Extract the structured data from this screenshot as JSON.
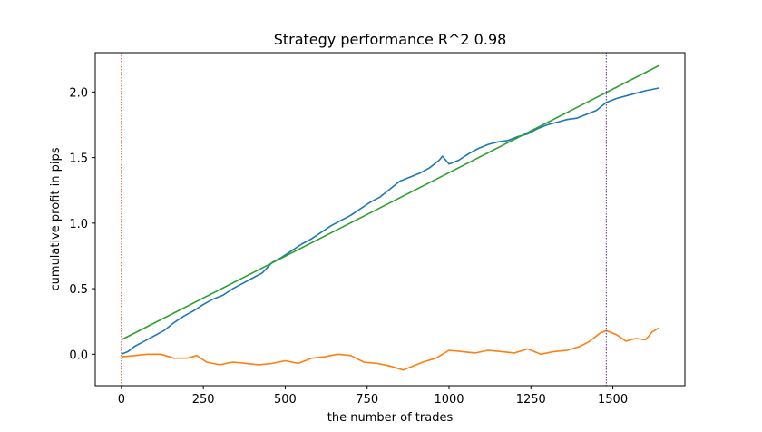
{
  "chart_data": {
    "type": "line",
    "title": "Strategy performance R^2 0.98",
    "xlabel": "the number of trades",
    "ylabel": "cumulative profit in pips",
    "xlim": [
      -80,
      1720
    ],
    "ylim": [
      -0.24,
      2.3
    ],
    "xticks": [
      0,
      250,
      500,
      750,
      1000,
      1250,
      1500
    ],
    "yticks": [
      0.0,
      0.5,
      1.0,
      1.5,
      2.0
    ],
    "grid": false,
    "vlines": [
      {
        "x": 0,
        "color": "#d62728",
        "style": "dotted"
      },
      {
        "x": 1480,
        "color": "#5a2ca0",
        "style": "dotted"
      }
    ],
    "series": [
      {
        "color": "#1f77b4",
        "points": [
          [
            0,
            0.0
          ],
          [
            20,
            0.02
          ],
          [
            40,
            0.06
          ],
          [
            70,
            0.1
          ],
          [
            100,
            0.14
          ],
          [
            130,
            0.18
          ],
          [
            160,
            0.24
          ],
          [
            190,
            0.29
          ],
          [
            220,
            0.33
          ],
          [
            250,
            0.38
          ],
          [
            280,
            0.42
          ],
          [
            310,
            0.45
          ],
          [
            340,
            0.5
          ],
          [
            370,
            0.54
          ],
          [
            400,
            0.58
          ],
          [
            430,
            0.62
          ],
          [
            460,
            0.7
          ],
          [
            490,
            0.74
          ],
          [
            520,
            0.79
          ],
          [
            550,
            0.84
          ],
          [
            580,
            0.88
          ],
          [
            610,
            0.93
          ],
          [
            640,
            0.98
          ],
          [
            670,
            1.02
          ],
          [
            700,
            1.06
          ],
          [
            730,
            1.11
          ],
          [
            760,
            1.16
          ],
          [
            790,
            1.2
          ],
          [
            820,
            1.26
          ],
          [
            850,
            1.32
          ],
          [
            880,
            1.35
          ],
          [
            910,
            1.38
          ],
          [
            940,
            1.42
          ],
          [
            970,
            1.48
          ],
          [
            980,
            1.51
          ],
          [
            1000,
            1.45
          ],
          [
            1030,
            1.48
          ],
          [
            1060,
            1.53
          ],
          [
            1090,
            1.57
          ],
          [
            1120,
            1.6
          ],
          [
            1150,
            1.62
          ],
          [
            1180,
            1.63
          ],
          [
            1210,
            1.66
          ],
          [
            1240,
            1.68
          ],
          [
            1270,
            1.72
          ],
          [
            1300,
            1.75
          ],
          [
            1330,
            1.77
          ],
          [
            1360,
            1.79
          ],
          [
            1390,
            1.8
          ],
          [
            1420,
            1.83
          ],
          [
            1450,
            1.86
          ],
          [
            1480,
            1.92
          ],
          [
            1510,
            1.95
          ],
          [
            1540,
            1.97
          ],
          [
            1570,
            1.99
          ],
          [
            1600,
            2.01
          ],
          [
            1620,
            2.02
          ],
          [
            1640,
            2.03
          ]
        ]
      },
      {
        "color": "#ff7f0e",
        "points": [
          [
            0,
            -0.02
          ],
          [
            40,
            -0.01
          ],
          [
            80,
            0.0
          ],
          [
            120,
            0.0
          ],
          [
            160,
            -0.03
          ],
          [
            200,
            -0.03
          ],
          [
            230,
            -0.01
          ],
          [
            260,
            -0.06
          ],
          [
            300,
            -0.08
          ],
          [
            340,
            -0.06
          ],
          [
            380,
            -0.07
          ],
          [
            420,
            -0.08
          ],
          [
            460,
            -0.07
          ],
          [
            500,
            -0.05
          ],
          [
            540,
            -0.07
          ],
          [
            580,
            -0.03
          ],
          [
            620,
            -0.02
          ],
          [
            660,
            0.0
          ],
          [
            700,
            -0.01
          ],
          [
            740,
            -0.06
          ],
          [
            780,
            -0.07
          ],
          [
            820,
            -0.09
          ],
          [
            860,
            -0.12
          ],
          [
            880,
            -0.1
          ],
          [
            920,
            -0.06
          ],
          [
            960,
            -0.03
          ],
          [
            980,
            0.0
          ],
          [
            1000,
            0.03
          ],
          [
            1040,
            0.02
          ],
          [
            1080,
            0.01
          ],
          [
            1120,
            0.03
          ],
          [
            1160,
            0.02
          ],
          [
            1200,
            0.01
          ],
          [
            1240,
            0.04
          ],
          [
            1280,
            0.0
          ],
          [
            1320,
            0.02
          ],
          [
            1360,
            0.03
          ],
          [
            1400,
            0.06
          ],
          [
            1430,
            0.1
          ],
          [
            1460,
            0.16
          ],
          [
            1480,
            0.18
          ],
          [
            1510,
            0.15
          ],
          [
            1540,
            0.1
          ],
          [
            1570,
            0.12
          ],
          [
            1600,
            0.11
          ],
          [
            1620,
            0.17
          ],
          [
            1640,
            0.2
          ]
        ]
      },
      {
        "color": "#2ca02c",
        "points": [
          [
            0,
            0.11
          ],
          [
            1640,
            2.2
          ]
        ]
      }
    ]
  }
}
